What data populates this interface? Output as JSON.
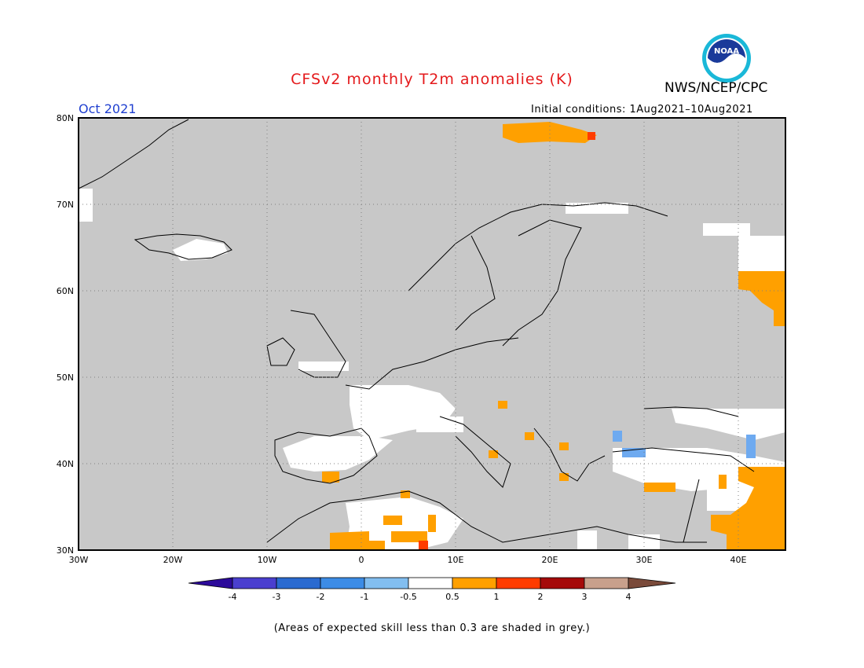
{
  "title": "CFSv2 monthly T2m anomalies (K)",
  "agency": "NWS/NCEP/CPC",
  "month": "Oct 2021",
  "initial_conditions": "Initial conditions: 1Aug2021–10Aug2021",
  "logo_text": "NOAA",
  "footnote": "(Areas of expected skill less than 0.3 are shaded in grey.)",
  "map": {
    "lat_labels": [
      "80N",
      "70N",
      "60N",
      "50N",
      "40N",
      "30N"
    ],
    "lon_labels": [
      "30W",
      "20W",
      "10W",
      "0",
      "10E",
      "20E",
      "30E",
      "40E"
    ],
    "colors": {
      "no_skill": "#c8c8c8",
      "near_normal": "#ffffff",
      "warm_1": "#ffa000",
      "warm_2": "#ff3c00",
      "cool_1": "#6eaaf0"
    }
  },
  "colorbar": {
    "labels": [
      "-4",
      "-3",
      "-2",
      "-1",
      "-0.5",
      "0.5",
      "1",
      "2",
      "3",
      "4"
    ],
    "colors": [
      "#2c0a9a",
      "#4a3fcf",
      "#2a6ad0",
      "#3c8ce6",
      "#82bef0",
      "#ffffff",
      "#ffa000",
      "#ff3c00",
      "#a50a0a",
      "#c8a08c",
      "#7a4a3a"
    ]
  }
}
